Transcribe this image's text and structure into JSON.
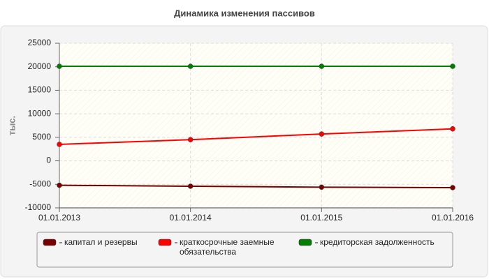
{
  "chart_data": {
    "type": "line",
    "title": "Динамика изменения пассивов",
    "y_label": "тыс.",
    "categories": [
      "01.01.2013",
      "01.01.2014",
      "01.01.2015",
      "01.01.2016"
    ],
    "series": [
      {
        "name": "капитал и резервы",
        "color": "#7a0000",
        "values": [
          -5200,
          -5400,
          -5600,
          -5700
        ]
      },
      {
        "name": "краткосрочные заемные обязательства",
        "color": "#ff0000",
        "values": [
          3500,
          4500,
          5700,
          6800
        ]
      },
      {
        "name": "кредиторская задолженность",
        "color": "#008000",
        "values": [
          20100,
          20100,
          20100,
          20100
        ]
      }
    ],
    "ylim": [
      -10000,
      25000
    ],
    "yticks": [
      -10000,
      -5000,
      0,
      5000,
      10000,
      15000,
      20000,
      25000
    ],
    "grid": true
  }
}
